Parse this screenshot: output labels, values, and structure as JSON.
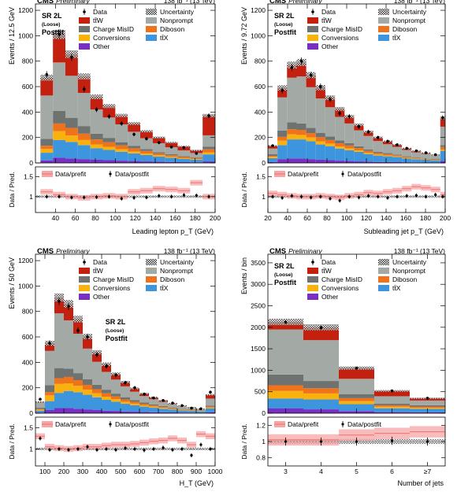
{
  "colors": {
    "ttW": "#c4200f",
    "nonprompt": "#a3a9a4",
    "chargemisid": "#6e7270",
    "diboson": "#f0731c",
    "conversions": "#f9b10d",
    "ttX": "#3d95de",
    "other": "#7a2fc4",
    "ratio_band": "#f7a6a6",
    "ratio_line": "#f07070"
  },
  "chart_data": [
    {
      "type": "bar",
      "stacked": true,
      "header_left": "CMS",
      "header_left_sub": "Preliminary",
      "header_right": "138 fb⁻¹ (13 TeV)",
      "text_lines": [
        "SR 2L",
        "(Loose)",
        "Postfit"
      ],
      "legend": {
        "data": "Data",
        "uncertainty": "Uncertainty",
        "ttW": "tt̄W",
        "nonprompt": "Nonprompt",
        "chargemisid": "Charge MisID",
        "diboson": "Diboson",
        "conversions": "Conversions",
        "ttX": "tt̄X",
        "other": "Other"
      },
      "ylabel": "Events / 12.5 GeV",
      "xlabel": "Leading lepton p_T (GeV)",
      "xlim": [
        20,
        200
      ],
      "ylim": [
        0,
        1250
      ],
      "yticks": [
        0,
        200,
        400,
        600,
        800,
        1000,
        1200
      ],
      "xticks": [
        40,
        60,
        80,
        100,
        120,
        140,
        160,
        180,
        200
      ],
      "bin_edges": [
        25,
        37.5,
        50,
        62.5,
        75,
        87.5,
        100,
        112.5,
        125,
        137.5,
        150,
        162.5,
        175,
        187.5,
        200
      ],
      "series": [
        {
          "key": "other",
          "values": [
            20,
            40,
            35,
            30,
            25,
            22,
            18,
            15,
            12,
            10,
            8,
            6,
            5,
            12
          ]
        },
        {
          "key": "ttX",
          "values": [
            60,
            140,
            130,
            110,
            90,
            80,
            70,
            60,
            50,
            40,
            32,
            25,
            20,
            55
          ]
        },
        {
          "key": "conversions",
          "values": [
            30,
            70,
            50,
            40,
            30,
            25,
            20,
            15,
            12,
            10,
            8,
            6,
            5,
            15
          ]
        },
        {
          "key": "diboson",
          "values": [
            25,
            60,
            60,
            50,
            40,
            35,
            30,
            25,
            20,
            15,
            12,
            10,
            8,
            25
          ]
        },
        {
          "key": "chargemisid",
          "values": [
            55,
            100,
            80,
            60,
            45,
            35,
            25,
            20,
            15,
            10,
            8,
            6,
            5,
            20
          ]
        },
        {
          "key": "nonprompt",
          "values": [
            340,
            380,
            330,
            260,
            190,
            160,
            140,
            110,
            85,
            70,
            55,
            45,
            35,
            90
          ]
        },
        {
          "key": "ttW",
          "values": [
            140,
            220,
            170,
            130,
            100,
            90,
            70,
            65,
            55,
            45,
            37,
            32,
            22,
            155
          ]
        }
      ],
      "data_points": [
        695,
        1010,
        830,
        580,
        420,
        365,
        310,
        225,
        190,
        160,
        125,
        120,
        75,
        370
      ],
      "ratio": {
        "ylabel": "Data / Pred.",
        "ylim": [
          0.6,
          1.75
        ],
        "yticks": [
          1,
          1.5
        ],
        "legend": {
          "prefit": "Data/prefit",
          "postfit": "Data/postfit"
        },
        "postfit": [
          1.0,
          1.0,
          0.98,
          0.98,
          0.99,
          1.0,
          0.95,
          0.97,
          0.98,
          1.02,
          1.0,
          1.04,
          1.03,
          1.0
        ],
        "prefit": [
          1.12,
          1.05,
          1.0,
          0.97,
          1.0,
          1.02,
          1.0,
          1.12,
          1.15,
          1.2,
          1.18,
          1.15,
          1.35,
          1.0
        ]
      }
    },
    {
      "type": "bar",
      "stacked": true,
      "header_left": "CMS",
      "header_left_sub": "Preliminary",
      "header_right": "138 fb⁻¹ (13 TeV)",
      "text_lines": [
        "SR 2L",
        "(Loose)",
        "Postfit"
      ],
      "legend": {
        "data": "Data",
        "uncertainty": "Uncertainty",
        "ttW": "tt̄W",
        "nonprompt": "Nonprompt",
        "chargemisid": "Charge MisID",
        "diboson": "Diboson",
        "conversions": "Conversions",
        "ttX": "tt̄X",
        "other": "Other"
      },
      "ylabel": "Events / 9.72 GeV",
      "xlabel": "Subleading jet p_T (GeV)",
      "xlim": [
        20,
        200
      ],
      "ylim": [
        0,
        1250
      ],
      "yticks": [
        0,
        200,
        400,
        600,
        800,
        1000,
        1200
      ],
      "xticks": [
        20,
        40,
        60,
        80,
        100,
        120,
        140,
        160,
        180,
        200
      ],
      "bin_edges": [
        20,
        29.7,
        39.4,
        49.2,
        58.9,
        68.6,
        78.3,
        88.1,
        97.8,
        107.5,
        117.2,
        126.9,
        136.7,
        146.4,
        156.1,
        165.8,
        175.5,
        185.3,
        195,
        200
      ],
      "series": [
        {
          "key": "other",
          "values": [
            8,
            30,
            35,
            35,
            30,
            25,
            22,
            18,
            15,
            12,
            10,
            8,
            7,
            6,
            5,
            4,
            3,
            3,
            15
          ]
        },
        {
          "key": "ttX",
          "values": [
            30,
            110,
            150,
            150,
            140,
            120,
            110,
            95,
            85,
            75,
            60,
            50,
            45,
            40,
            30,
            25,
            22,
            18,
            80
          ]
        },
        {
          "key": "conversions",
          "values": [
            10,
            35,
            40,
            35,
            30,
            25,
            20,
            17,
            15,
            12,
            10,
            8,
            7,
            6,
            5,
            4,
            3,
            3,
            10
          ]
        },
        {
          "key": "diboson",
          "values": [
            8,
            30,
            40,
            40,
            35,
            32,
            28,
            25,
            22,
            18,
            15,
            12,
            10,
            8,
            7,
            6,
            5,
            4,
            20
          ]
        },
        {
          "key": "chargemisid",
          "values": [
            12,
            50,
            55,
            50,
            40,
            35,
            28,
            22,
            18,
            14,
            12,
            9,
            8,
            6,
            5,
            4,
            3,
            3,
            15
          ]
        },
        {
          "key": "nonprompt",
          "values": [
            45,
            260,
            350,
            370,
            320,
            270,
            230,
            185,
            155,
            125,
            105,
            85,
            70,
            60,
            50,
            40,
            35,
            30,
            145
          ]
        },
        {
          "key": "ttW",
          "values": [
            22,
            75,
            100,
            110,
            95,
            85,
            75,
            63,
            55,
            44,
            33,
            28,
            23,
            17,
            13,
            12,
            9,
            4,
            70
          ]
        }
      ],
      "data_points": [
        135,
        570,
        750,
        800,
        690,
        600,
        500,
        390,
        365,
        285,
        245,
        200,
        170,
        143,
        115,
        95,
        80,
        65,
        355
      ],
      "ratio": {
        "ylabel": "Data / Pred.",
        "ylim": [
          0.6,
          1.75
        ],
        "yticks": [
          1,
          1.5
        ],
        "legend": {
          "prefit": "Data/prefit",
          "postfit": "Data/postfit"
        },
        "postfit": [
          1.0,
          0.97,
          1.02,
          1.0,
          0.98,
          1.0,
          0.95,
          0.9,
          1.0,
          0.98,
          1.02,
          1.0,
          0.97,
          1.0,
          1.02,
          1.03,
          1.0,
          1.05,
          1.0
        ],
        "prefit": [
          1.08,
          1.05,
          1.02,
          1.0,
          1.0,
          1.02,
          1.0,
          0.98,
          1.02,
          1.05,
          1.1,
          1.08,
          1.12,
          1.15,
          1.2,
          1.25,
          1.22,
          1.18,
          1.05
        ]
      }
    },
    {
      "type": "bar",
      "stacked": true,
      "header_left": "CMS",
      "header_left_sub": "Preliminary",
      "header_right": "138 fb⁻¹ (13 TeV)",
      "text_lines": [
        "SR 2L",
        "(Loose)",
        "Postfit"
      ],
      "legend": {
        "data": "Data",
        "uncertainty": "Uncertainty",
        "ttW": "tt̄W",
        "nonprompt": "Nonprompt",
        "chargemisid": "Charge MisID",
        "diboson": "Diboson",
        "conversions": "Conversions",
        "ttX": "tt̄X",
        "other": "Other"
      },
      "ylabel": "Events / 50 GeV",
      "xlabel": "H_T (GeV)",
      "xlim": [
        50,
        1000
      ],
      "ylim": [
        0,
        1250
      ],
      "yticks": [
        0,
        200,
        400,
        600,
        800,
        1000,
        1200
      ],
      "xticks": [
        100,
        200,
        300,
        400,
        500,
        600,
        700,
        800,
        900,
        1000
      ],
      "bin_edges": [
        50,
        100,
        150,
        200,
        250,
        300,
        350,
        400,
        450,
        500,
        550,
        600,
        650,
        700,
        750,
        800,
        850,
        900,
        950,
        1000
      ],
      "series": [
        {
          "key": "other",
          "values": [
            5,
            25,
            40,
            40,
            35,
            30,
            25,
            20,
            18,
            14,
            12,
            10,
            8,
            7,
            6,
            5,
            4,
            3,
            8
          ]
        },
        {
          "key": "ttX",
          "values": [
            15,
            70,
            120,
            135,
            130,
            115,
            100,
            85,
            72,
            60,
            50,
            42,
            35,
            28,
            22,
            18,
            14,
            12,
            30
          ]
        },
        {
          "key": "conversions",
          "values": [
            8,
            45,
            70,
            60,
            50,
            40,
            32,
            25,
            20,
            16,
            13,
            10,
            8,
            7,
            5,
            4,
            3,
            3,
            6
          ]
        },
        {
          "key": "diboson",
          "values": [
            5,
            25,
            45,
            50,
            45,
            38,
            32,
            27,
            22,
            18,
            15,
            12,
            10,
            8,
            6,
            5,
            4,
            3,
            8
          ]
        },
        {
          "key": "chargemisid",
          "values": [
            10,
            55,
            80,
            65,
            55,
            45,
            35,
            28,
            22,
            18,
            14,
            11,
            9,
            7,
            6,
            4,
            3,
            3,
            8
          ]
        },
        {
          "key": "nonprompt",
          "values": [
            40,
            270,
            430,
            380,
            310,
            240,
            180,
            140,
            110,
            85,
            65,
            50,
            40,
            32,
            25,
            18,
            15,
            10,
            55
          ]
        },
        {
          "key": "ttW",
          "values": [
            7,
            60,
            125,
            130,
            115,
            95,
            75,
            60,
            45,
            34,
            26,
            20,
            15,
            12,
            8,
            6,
            4,
            2,
            30
          ]
        }
      ],
      "data_points": [
        110,
        550,
        880,
        840,
        650,
        600,
        460,
        370,
        300,
        240,
        200,
        150,
        120,
        100,
        80,
        60,
        40,
        35,
        165
      ],
      "ratio": {
        "ylabel": "Data / Pred.",
        "ylim": [
          0.6,
          1.75
        ],
        "yticks": [
          1,
          1.5
        ],
        "legend": {
          "prefit": "Data/prefit",
          "postfit": "Data/postfit"
        },
        "postfit": [
          1.25,
          0.98,
          1.0,
          0.98,
          1.0,
          1.05,
          0.98,
          1.0,
          0.98,
          1.02,
          1.0,
          0.97,
          1.0,
          1.03,
          0.98,
          1.0,
          0.85,
          1.1,
          1.0
        ],
        "prefit": [
          1.3,
          1.05,
          1.02,
          1.0,
          1.02,
          1.05,
          1.05,
          1.08,
          1.1,
          1.1,
          1.12,
          1.15,
          1.18,
          1.2,
          1.25,
          1.2,
          1.1,
          1.35,
          1.3
        ]
      }
    },
    {
      "type": "bar",
      "stacked": true,
      "header_left": "CMS",
      "header_left_sub": "Preliminary",
      "header_right": "138 fb⁻¹ (13 TeV)",
      "text_lines": [
        "SR 2L",
        "(Loose)",
        "Postfit"
      ],
      "legend": {
        "data": "Data",
        "uncertainty": "Uncertainty",
        "ttW": "tt̄W",
        "nonprompt": "Nonprompt",
        "chargemisid": "Charge MisID",
        "diboson": "Diboson",
        "conversions": "Conversions",
        "ttX": "tt̄X",
        "other": "Other"
      },
      "ylabel": "Events / bin",
      "xlabel": "Number of jets",
      "xlim": [
        2.5,
        7.5
      ],
      "ylim": [
        0,
        3700
      ],
      "yticks": [
        0,
        500,
        1000,
        1500,
        2000,
        2500,
        3000,
        3500
      ],
      "xticks": [
        3,
        4,
        5,
        6,
        7
      ],
      "xtick_labels": [
        "3",
        "4",
        "5",
        "6",
        "≥7"
      ],
      "bin_edges": [
        2.5,
        3.5,
        4.5,
        5.5,
        6.5,
        7.5
      ],
      "series": [
        {
          "key": "other",
          "values": [
            110,
            90,
            50,
            25,
            20
          ]
        },
        {
          "key": "ttX",
          "values": [
            230,
            230,
            160,
            90,
            80
          ]
        },
        {
          "key": "conversions",
          "values": [
            180,
            140,
            70,
            35,
            25
          ]
        },
        {
          "key": "diboson",
          "values": [
            130,
            120,
            70,
            35,
            30
          ]
        },
        {
          "key": "chargemisid",
          "values": [
            250,
            170,
            90,
            40,
            30
          ]
        },
        {
          "key": "nonprompt",
          "values": [
            1050,
            950,
            360,
            170,
            110
          ]
        },
        {
          "key": "ttW",
          "values": [
            175,
            300,
            250,
            125,
            55
          ]
        }
      ],
      "data_points": [
        2120,
        1990,
        1050,
        520,
        350
      ],
      "ratio": {
        "ylabel": "Data / Pred.",
        "ylim": [
          0.7,
          1.3
        ],
        "yticks": [
          0.8,
          1,
          1.2
        ],
        "legend": {
          "prefit": "Data/prefit",
          "postfit": "Data/postfit"
        },
        "postfit": [
          1.0,
          1.0,
          1.0,
          1.01,
          1.0
        ],
        "prefit": [
          1.02,
          1.02,
          1.08,
          1.1,
          1.12
        ]
      }
    }
  ]
}
